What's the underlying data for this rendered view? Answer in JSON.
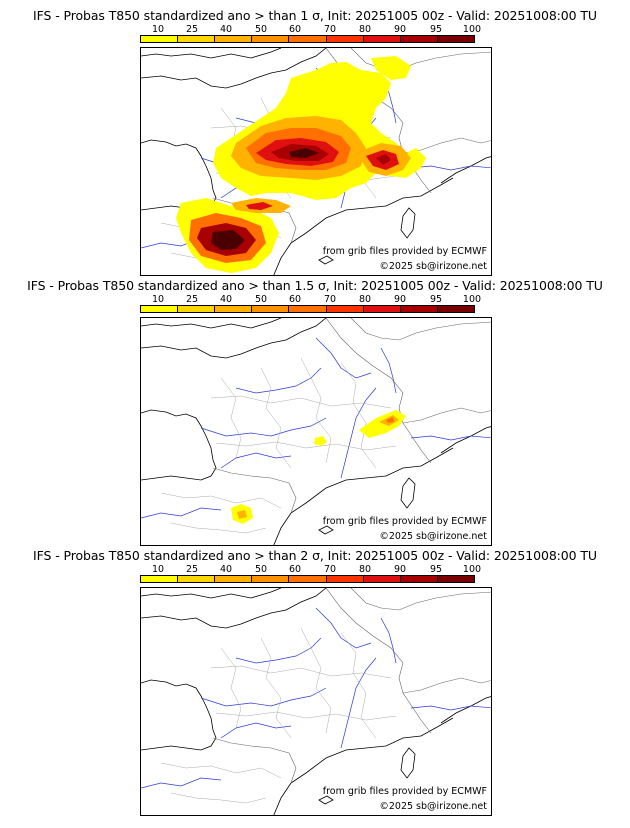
{
  "colorbar": {
    "ticks": [
      "10",
      "25",
      "40",
      "50",
      "60",
      "70",
      "80",
      "90",
      "95",
      "100"
    ],
    "colors": [
      "#ffff00",
      "#ffd700",
      "#ffb300",
      "#ff9000",
      "#ff7000",
      "#ff3300",
      "#e01010",
      "#a80000",
      "#7a0000",
      "#4a0000"
    ]
  },
  "panels": [
    {
      "title": "IFS - Probas T850  standardized ano > than 1 σ, Init: 20251005 00z - Valid: 20251008:00 TU",
      "source_note": "from grib files provided by ECMWF",
      "copyright": "©2025 sb@irizone.net"
    },
    {
      "title": "IFS - Probas T850  standardized ano > than 1.5 σ, Init: 20251005 00z - Valid: 20251008:00 TU",
      "source_note": "from grib files provided by ECMWF",
      "copyright": "©2025 sb@irizone.net"
    },
    {
      "title": "IFS - Probas T850  standardized ano > than 2 σ, Init: 20251005 00z - Valid: 20251008:00 TU",
      "source_note": "from grib files provided by ECMWF",
      "copyright": "©2025 sb@irizone.net"
    }
  ]
}
